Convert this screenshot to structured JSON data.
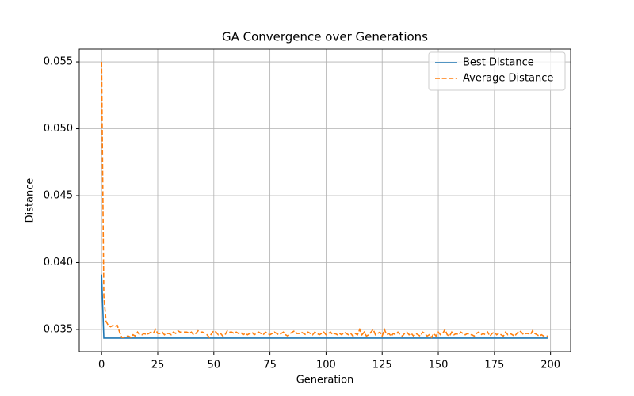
{
  "chart_data": {
    "type": "line",
    "title": "GA Convergence over Generations",
    "x_label": "Generation",
    "y_label": "Distance",
    "x": [
      0,
      1,
      2,
      3,
      4,
      5,
      6,
      7,
      8,
      9,
      10,
      11,
      12,
      13,
      14,
      15,
      16,
      17,
      18,
      19,
      20,
      21,
      22,
      23,
      24,
      25,
      26,
      27,
      28,
      29,
      30,
      31,
      32,
      33,
      34,
      35,
      36,
      37,
      38,
      39,
      40,
      41,
      42,
      43,
      44,
      45,
      46,
      47,
      48,
      49,
      50,
      51,
      52,
      53,
      54,
      55,
      56,
      57,
      58,
      59,
      60,
      61,
      62,
      63,
      64,
      65,
      66,
      67,
      68,
      69,
      70,
      71,
      72,
      73,
      74,
      75,
      76,
      77,
      78,
      79,
      80,
      81,
      82,
      83,
      84,
      85,
      86,
      87,
      88,
      89,
      90,
      91,
      92,
      93,
      94,
      95,
      96,
      97,
      98,
      99,
      100,
      101,
      102,
      103,
      104,
      105,
      106,
      107,
      108,
      109,
      110,
      111,
      112,
      113,
      114,
      115,
      116,
      117,
      118,
      119,
      120,
      121,
      122,
      123,
      124,
      125,
      126,
      127,
      128,
      129,
      130,
      131,
      132,
      133,
      134,
      135,
      136,
      137,
      138,
      139,
      140,
      141,
      142,
      143,
      144,
      145,
      146,
      147,
      148,
      149,
      150,
      151,
      152,
      153,
      154,
      155,
      156,
      157,
      158,
      159,
      160,
      161,
      162,
      163,
      164,
      165,
      166,
      167,
      168,
      169,
      170,
      171,
      172,
      173,
      174,
      175,
      176,
      177,
      178,
      179,
      180,
      181,
      182,
      183,
      184,
      185,
      186,
      187,
      188,
      189,
      190,
      191,
      192,
      193,
      194,
      195,
      196,
      197,
      198,
      199
    ],
    "series": [
      {
        "name": "Best Distance",
        "color": "#1f77b4",
        "linestyle": "solid",
        "values": [
          0.0391,
          0.03435,
          0.03435,
          0.03435,
          0.03435,
          0.03435,
          0.03435,
          0.03435,
          0.03435,
          0.03435,
          0.03435,
          0.03435,
          0.03435,
          0.03435,
          0.03435,
          0.03435,
          0.03435,
          0.03435,
          0.03435,
          0.03435,
          0.03435,
          0.03435,
          0.03435,
          0.03435,
          0.03435,
          0.03435,
          0.03435,
          0.03435,
          0.03435,
          0.03435,
          0.03435,
          0.03435,
          0.03435,
          0.03435,
          0.03435,
          0.03435,
          0.03435,
          0.03435,
          0.03435,
          0.03435,
          0.03435,
          0.03435,
          0.03435,
          0.03435,
          0.03435,
          0.03435,
          0.03435,
          0.03435,
          0.03435,
          0.03435,
          0.03435,
          0.03435,
          0.03435,
          0.03435,
          0.03435,
          0.03435,
          0.03435,
          0.03435,
          0.03435,
          0.03435,
          0.03435,
          0.03435,
          0.03435,
          0.03435,
          0.03435,
          0.03435,
          0.03435,
          0.03435,
          0.03435,
          0.03435,
          0.03435,
          0.03435,
          0.03435,
          0.03435,
          0.03435,
          0.03435,
          0.03435,
          0.03435,
          0.03435,
          0.03435,
          0.03435,
          0.03435,
          0.03435,
          0.03435,
          0.03435,
          0.03435,
          0.03435,
          0.03435,
          0.03435,
          0.03435,
          0.03435,
          0.03435,
          0.03435,
          0.03435,
          0.03435,
          0.03435,
          0.03435,
          0.03435,
          0.03435,
          0.03435,
          0.03435,
          0.03435,
          0.03435,
          0.03435,
          0.03435,
          0.03435,
          0.03435,
          0.03435,
          0.03435,
          0.03435,
          0.03435,
          0.03435,
          0.03435,
          0.03435,
          0.03435,
          0.03435,
          0.03435,
          0.03435,
          0.03435,
          0.03435,
          0.03435,
          0.03435,
          0.03435,
          0.03435,
          0.03435,
          0.03435,
          0.03435,
          0.03435,
          0.03435,
          0.03435,
          0.03435,
          0.03435,
          0.03435,
          0.03435,
          0.03435,
          0.03435,
          0.03435,
          0.03435,
          0.03435,
          0.03435,
          0.03435,
          0.03435,
          0.03435,
          0.03435,
          0.03435,
          0.03435,
          0.03435,
          0.03435,
          0.03435,
          0.03435,
          0.03435,
          0.03435,
          0.03435,
          0.03435,
          0.03435,
          0.03435,
          0.03435,
          0.03435,
          0.03435,
          0.03435,
          0.03435,
          0.03435,
          0.03435,
          0.03435,
          0.03435,
          0.03435,
          0.03435,
          0.03435,
          0.03435,
          0.03435,
          0.03435,
          0.03435,
          0.03435,
          0.03435,
          0.03435,
          0.03435,
          0.03435,
          0.03435,
          0.03435,
          0.03435,
          0.03435,
          0.03435,
          0.03435,
          0.03435,
          0.03435,
          0.03435,
          0.03435,
          0.03435,
          0.03435,
          0.03435,
          0.03435,
          0.03435,
          0.03435,
          0.03435,
          0.03435,
          0.03435,
          0.03435,
          0.03435,
          0.03435,
          0.03435
        ]
      },
      {
        "name": "Average Distance",
        "color": "#ff7f0e",
        "linestyle": "dashed",
        "values": [
          0.055,
          0.0375,
          0.0356,
          0.0353,
          0.0352,
          0.0353,
          0.0352,
          0.0353,
          0.0348,
          0.0344,
          0.0344,
          0.0345,
          0.0345,
          0.0344,
          0.0346,
          0.0345,
          0.0348,
          0.0346,
          0.0346,
          0.0347,
          0.0346,
          0.0347,
          0.0348,
          0.0347,
          0.035,
          0.0347,
          0.0347,
          0.0348,
          0.0346,
          0.0347,
          0.0347,
          0.0346,
          0.0348,
          0.0347,
          0.0349,
          0.0348,
          0.0348,
          0.0348,
          0.0348,
          0.0347,
          0.0348,
          0.0346,
          0.0347,
          0.0349,
          0.0348,
          0.0348,
          0.0347,
          0.0346,
          0.0344,
          0.0347,
          0.0349,
          0.0348,
          0.0346,
          0.0347,
          0.0345,
          0.0346,
          0.0349,
          0.0348,
          0.0348,
          0.0347,
          0.0348,
          0.0347,
          0.0348,
          0.0346,
          0.0347,
          0.0346,
          0.0347,
          0.0348,
          0.0346,
          0.0347,
          0.0348,
          0.0347,
          0.0346,
          0.0348,
          0.0347,
          0.0346,
          0.0347,
          0.0348,
          0.0347,
          0.0346,
          0.0347,
          0.0348,
          0.0346,
          0.0345,
          0.0347,
          0.0348,
          0.0349,
          0.0347,
          0.0347,
          0.0348,
          0.0347,
          0.0346,
          0.0348,
          0.0347,
          0.0346,
          0.0348,
          0.0347,
          0.0346,
          0.0347,
          0.0348,
          0.0346,
          0.0347,
          0.0348,
          0.0346,
          0.0347,
          0.0346,
          0.0347,
          0.0346,
          0.0348,
          0.0347,
          0.0346,
          0.0347,
          0.0345,
          0.0347,
          0.0346,
          0.035,
          0.0346,
          0.0348,
          0.0345,
          0.0346,
          0.0348,
          0.035,
          0.0346,
          0.0347,
          0.0348,
          0.0345,
          0.035,
          0.0346,
          0.0347,
          0.0345,
          0.0347,
          0.0346,
          0.0348,
          0.0346,
          0.0345,
          0.0347,
          0.0348,
          0.0346,
          0.0347,
          0.0345,
          0.0347,
          0.0346,
          0.0345,
          0.0348,
          0.0347,
          0.0345,
          0.0346,
          0.0344,
          0.0347,
          0.0345,
          0.0348,
          0.0346,
          0.0347,
          0.035,
          0.0346,
          0.0345,
          0.0348,
          0.0346,
          0.0347,
          0.0346,
          0.0348,
          0.0347,
          0.0346,
          0.0347,
          0.0346,
          0.0346,
          0.0345,
          0.0347,
          0.0348,
          0.0346,
          0.0347,
          0.0346,
          0.0348,
          0.0345,
          0.0347,
          0.0348,
          0.0346,
          0.0347,
          0.0346,
          0.0345,
          0.0348,
          0.0346,
          0.0347,
          0.0346,
          0.0345,
          0.0347,
          0.0349,
          0.0348,
          0.0346,
          0.0347,
          0.0347,
          0.0346,
          0.0349,
          0.0347,
          0.0346,
          0.0345,
          0.0346,
          0.0345,
          0.0345,
          0.0345
        ]
      }
    ],
    "xlim": [
      -9.95,
      208.95
    ],
    "xticks": [
      0,
      25,
      50,
      75,
      100,
      125,
      150,
      175,
      200
    ],
    "ylim": [
      0.03334,
      0.05595
    ],
    "yticks": [
      0.035,
      {
        "value": 0.04,
        "label": "0.040"
      },
      0.045,
      {
        "value": 0.05,
        "label": "0.050"
      },
      0.055
    ],
    "grid": true,
    "legend": "upper right"
  }
}
